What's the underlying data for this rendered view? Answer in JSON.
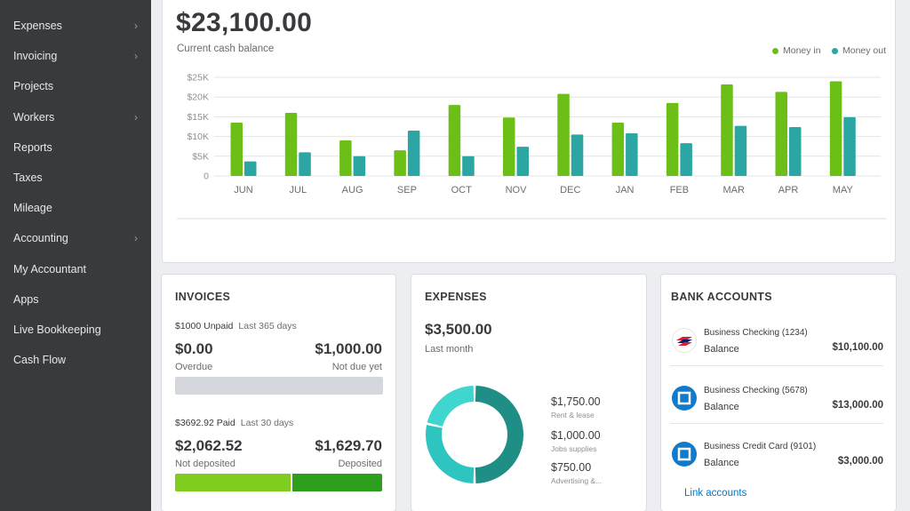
{
  "sidebar": {
    "items": [
      {
        "label": "Expenses",
        "chevron": true
      },
      {
        "label": "Invoicing",
        "chevron": true
      },
      {
        "label": "Projects",
        "chevron": false
      },
      {
        "label": "Workers",
        "chevron": true
      },
      {
        "label": "Reports",
        "chevron": false
      },
      {
        "label": "Taxes",
        "chevron": false
      },
      {
        "label": "Mileage",
        "chevron": false
      },
      {
        "label": "Accounting",
        "chevron": true
      },
      {
        "label": "My Accountant",
        "chevron": false
      },
      {
        "label": "Apps",
        "chevron": false
      },
      {
        "label": "Live Bookkeeping",
        "chevron": false
      },
      {
        "label": "Cash Flow",
        "chevron": false
      }
    ]
  },
  "cash": {
    "balance": "$23,100.00",
    "label": "Current cash balance",
    "legend_in": "Money in",
    "legend_out": "Money out"
  },
  "colors": {
    "money_in": "#6cbf16",
    "money_out": "#2ba6a3",
    "sidebar_bg": "#393a3d",
    "link": "#0077c5"
  },
  "chart_data": {
    "type": "bar",
    "categories": [
      "JUN",
      "JUL",
      "AUG",
      "SEP",
      "OCT",
      "NOV",
      "DEC",
      "JAN",
      "FEB",
      "MAR",
      "APR",
      "MAY"
    ],
    "series": [
      {
        "name": "Money in",
        "values": [
          13500,
          16000,
          9000,
          6500,
          18000,
          14800,
          20800,
          13500,
          18500,
          23200,
          21300,
          24000
        ]
      },
      {
        "name": "Money out",
        "values": [
          3700,
          6000,
          5000,
          11500,
          5000,
          7400,
          10500,
          10800,
          8300,
          12700,
          12400,
          14900
        ]
      }
    ],
    "y_ticks": [
      "0",
      "$5K",
      "$10K",
      "$15K",
      "$20K",
      "$25K"
    ],
    "ylim": [
      0,
      25000
    ],
    "grid": true,
    "legend": "top-right"
  },
  "invoices": {
    "title": "INVOICES",
    "unpaid_amount": "$1000 Unpaid",
    "unpaid_period": "Last 365 days",
    "overdue_amount": "$0.00",
    "overdue_label": "Overdue",
    "not_due_amount": "$1,000.00",
    "not_due_label": "Not due yet",
    "paid_amount": "$3692.92 Paid",
    "paid_period": "Last 30 days",
    "not_deposited_amount": "$2,062.52",
    "not_deposited_label": "Not deposited",
    "deposited_amount": "$1,629.70",
    "deposited_label": "Deposited",
    "not_deposited_fraction": 0.5585,
    "not_deposited_color": "#7fcd1e",
    "deposited_color": "#2ca01c"
  },
  "expenses": {
    "title": "EXPENSES",
    "total": "$3,500.00",
    "period": "Last month",
    "categories": [
      {
        "amount": "$1,750.00",
        "label": "Rent & lease",
        "value": 1750,
        "color": "#1f8f86"
      },
      {
        "amount": "$1,000.00",
        "label": "Jobs supplies",
        "value": 1000,
        "color": "#2ec4bf"
      },
      {
        "amount": "$750.00",
        "label": "Advertising &...",
        "value": 750,
        "color": "#3fd6d0"
      }
    ]
  },
  "bank": {
    "title": "BANK ACCOUNTS",
    "accounts": [
      {
        "name": "Business Checking (1234)",
        "balance_label": "Balance",
        "balance": "$10,100.00",
        "icon": "bank-of-america-icon"
      },
      {
        "name": "Business Checking (5678)",
        "balance_label": "Balance",
        "balance": "$13,000.00",
        "icon": "chase-icon"
      },
      {
        "name": "Business Credit Card (9101)",
        "balance_label": "Balance",
        "balance": "$3,000.00",
        "icon": "chase-icon"
      }
    ],
    "link_label": "Link accounts"
  }
}
